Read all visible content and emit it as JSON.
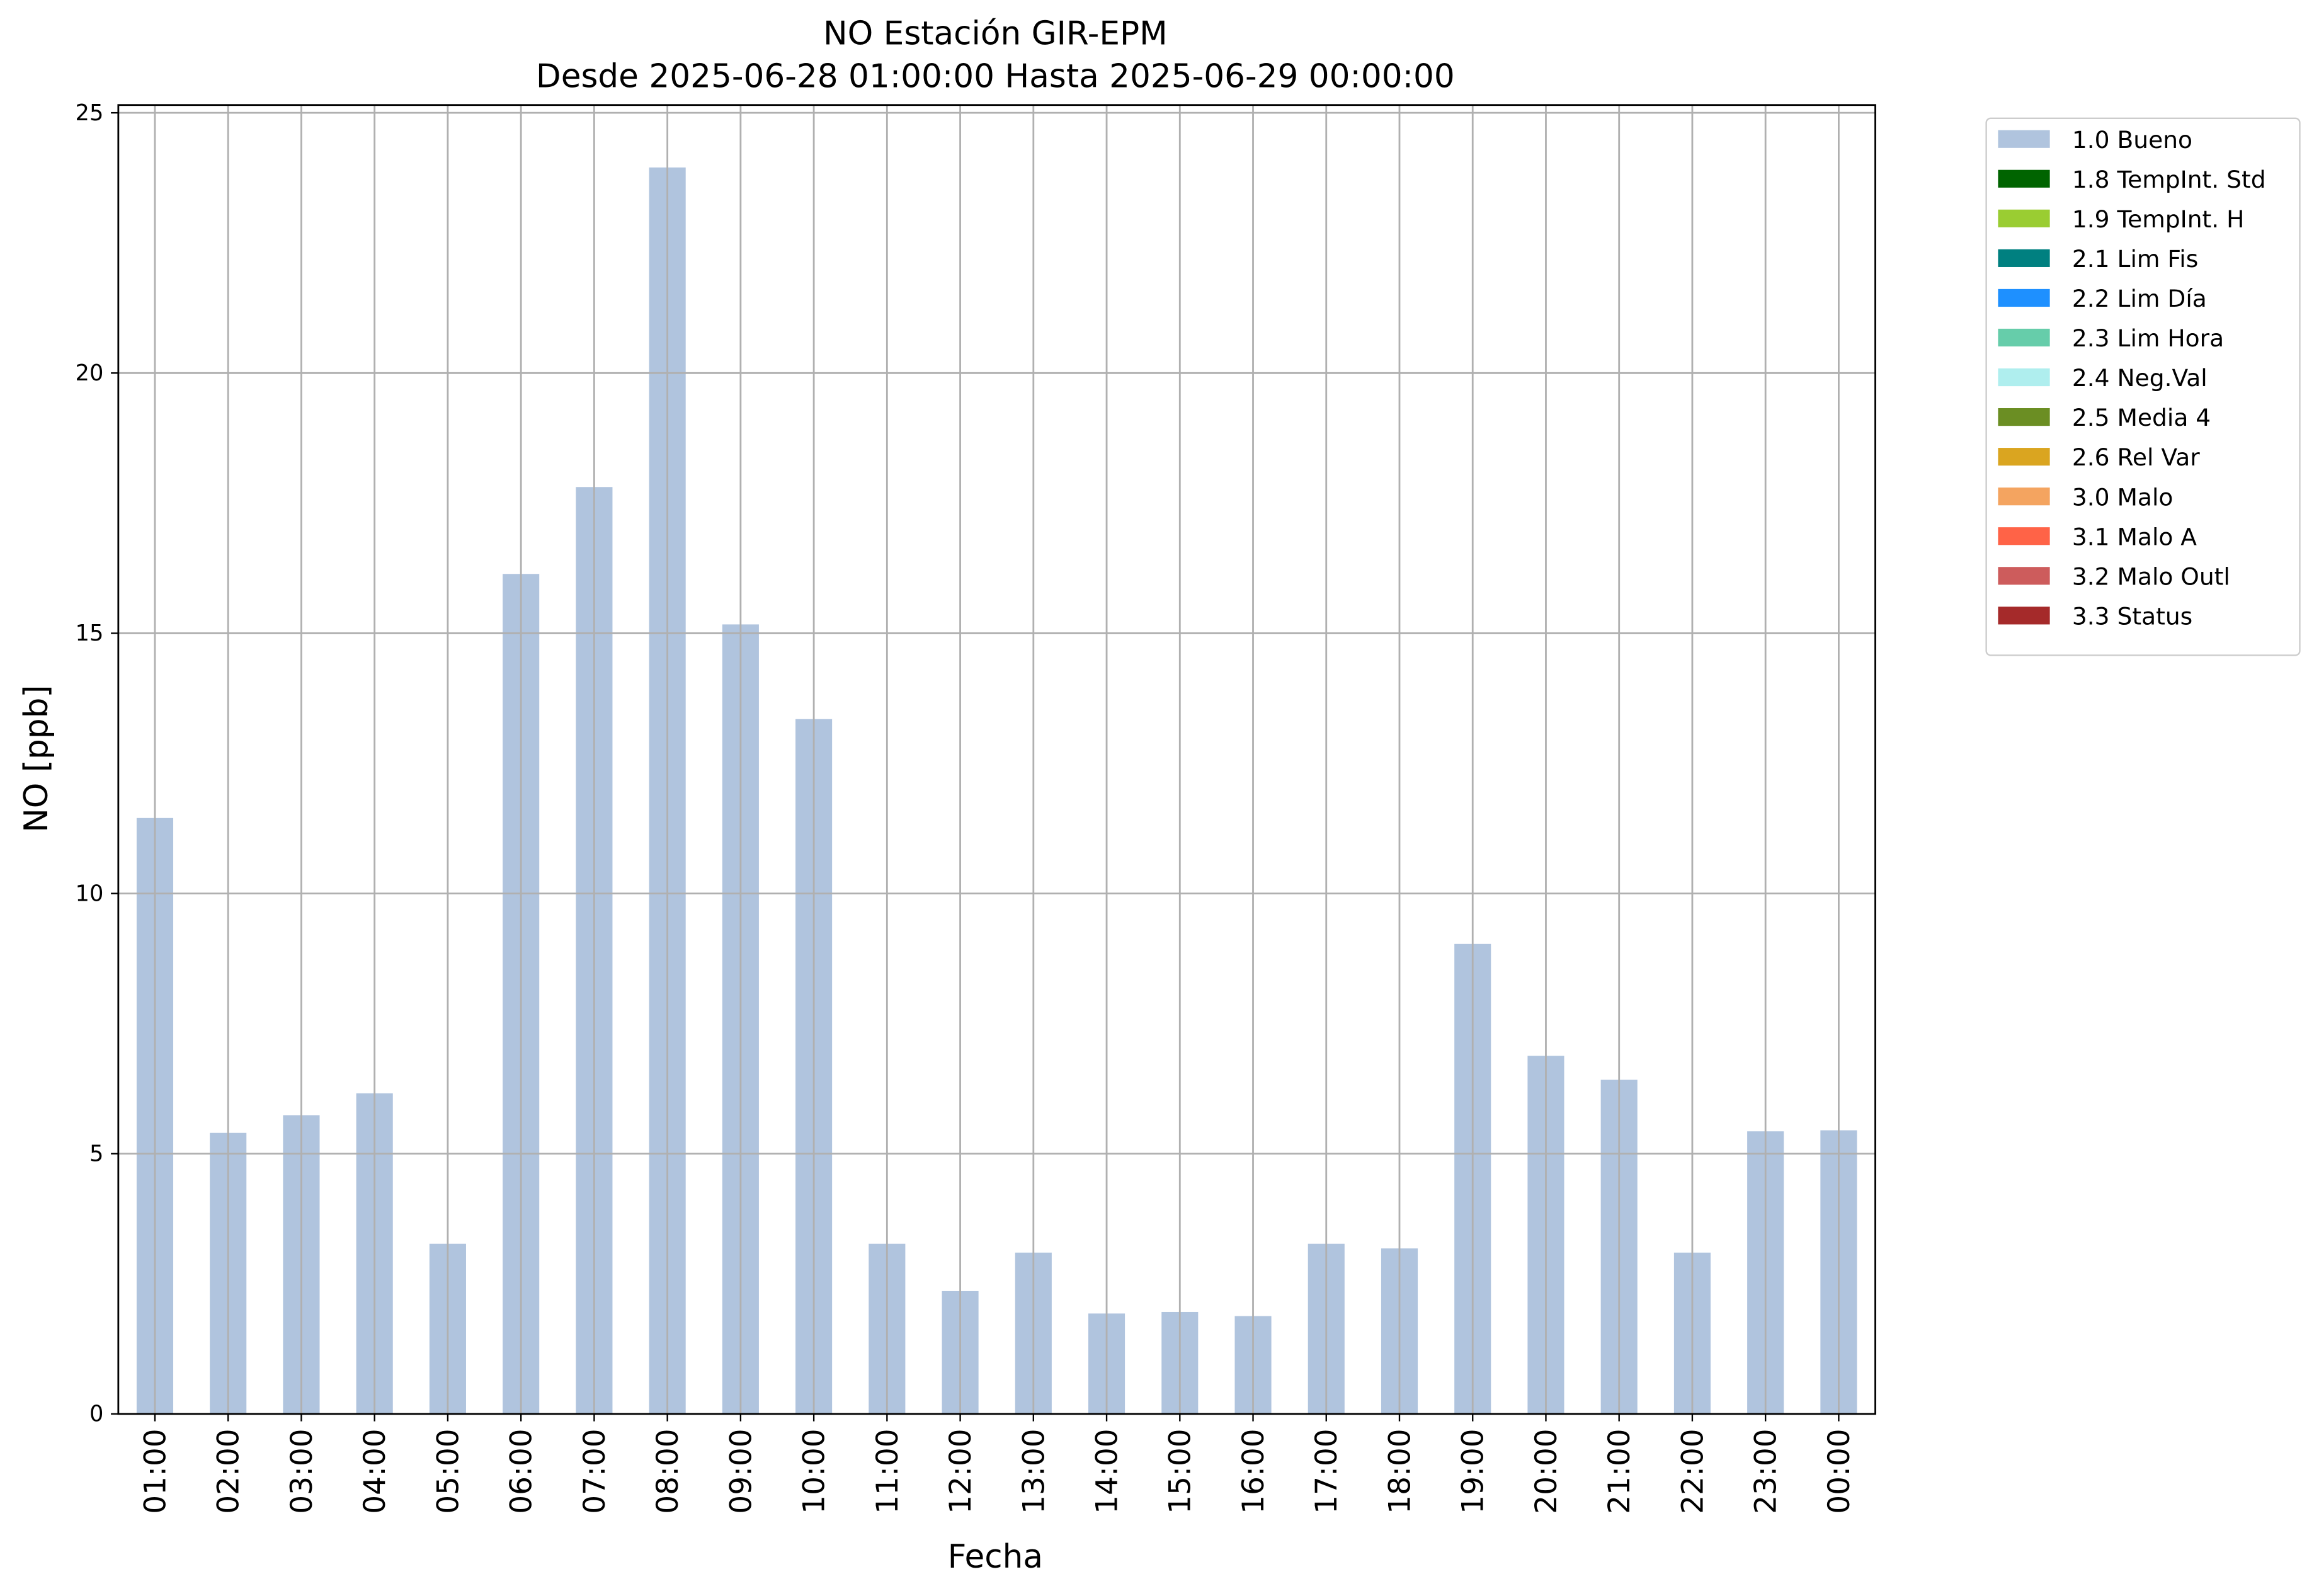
{
  "chart_data": {
    "type": "bar",
    "title": "NO Estación GIR-EPM",
    "subtitle": "Desde 2025-06-28 01:00:00 Hasta 2025-06-29 00:00:00",
    "x_label": "Fecha",
    "y_label": "NO [ppb]",
    "categories": [
      "01:00",
      "02:00",
      "03:00",
      "04:00",
      "05:00",
      "06:00",
      "07:00",
      "08:00",
      "09:00",
      "10:00",
      "11:00",
      "12:00",
      "13:00",
      "14:00",
      "15:00",
      "16:00",
      "17:00",
      "18:00",
      "19:00",
      "20:00",
      "21:00",
      "22:00",
      "23:00",
      "00:00"
    ],
    "series": [
      {
        "name": "1.0 Bueno",
        "color": "#b0c4de",
        "values": [
          11.45,
          5.4,
          5.74,
          6.16,
          3.27,
          16.14,
          17.81,
          23.95,
          15.17,
          13.35,
          3.27,
          2.36,
          3.1,
          1.93,
          1.96,
          1.88,
          3.27,
          3.18,
          9.03,
          6.88,
          6.42,
          3.1,
          5.43,
          5.45
        ]
      }
    ],
    "legend_entries": [
      {
        "name": "1.8 TempInt. Std",
        "color": "#006400"
      },
      {
        "name": "1.9 TempInt. H",
        "color": "#9acd32"
      },
      {
        "name": "2.1 Lim Fis",
        "color": "#008080"
      },
      {
        "name": "2.2 Lim Día",
        "color": "#1e90ff"
      },
      {
        "name": "2.3 Lim Hora",
        "color": "#66cdaa"
      },
      {
        "name": "2.4 Neg.Val",
        "color": "#afeeee"
      },
      {
        "name": "2.5 Media 4",
        "color": "#6b8e23"
      },
      {
        "name": "2.6 Rel Var",
        "color": "#daa520"
      },
      {
        "name": "3.0 Malo",
        "color": "#f4a460"
      },
      {
        "name": "3.1 Malo A",
        "color": "#ff6347"
      },
      {
        "name": "3.2 Malo Outl",
        "color": "#cd5c5c"
      },
      {
        "name": "3.3 Status",
        "color": "#a52a2a"
      }
    ],
    "ylim": [
      0,
      25.15
    ],
    "yticks": [
      0,
      5,
      10,
      15,
      20,
      25
    ],
    "grid": true,
    "legend_position": "outside-upper-right"
  }
}
